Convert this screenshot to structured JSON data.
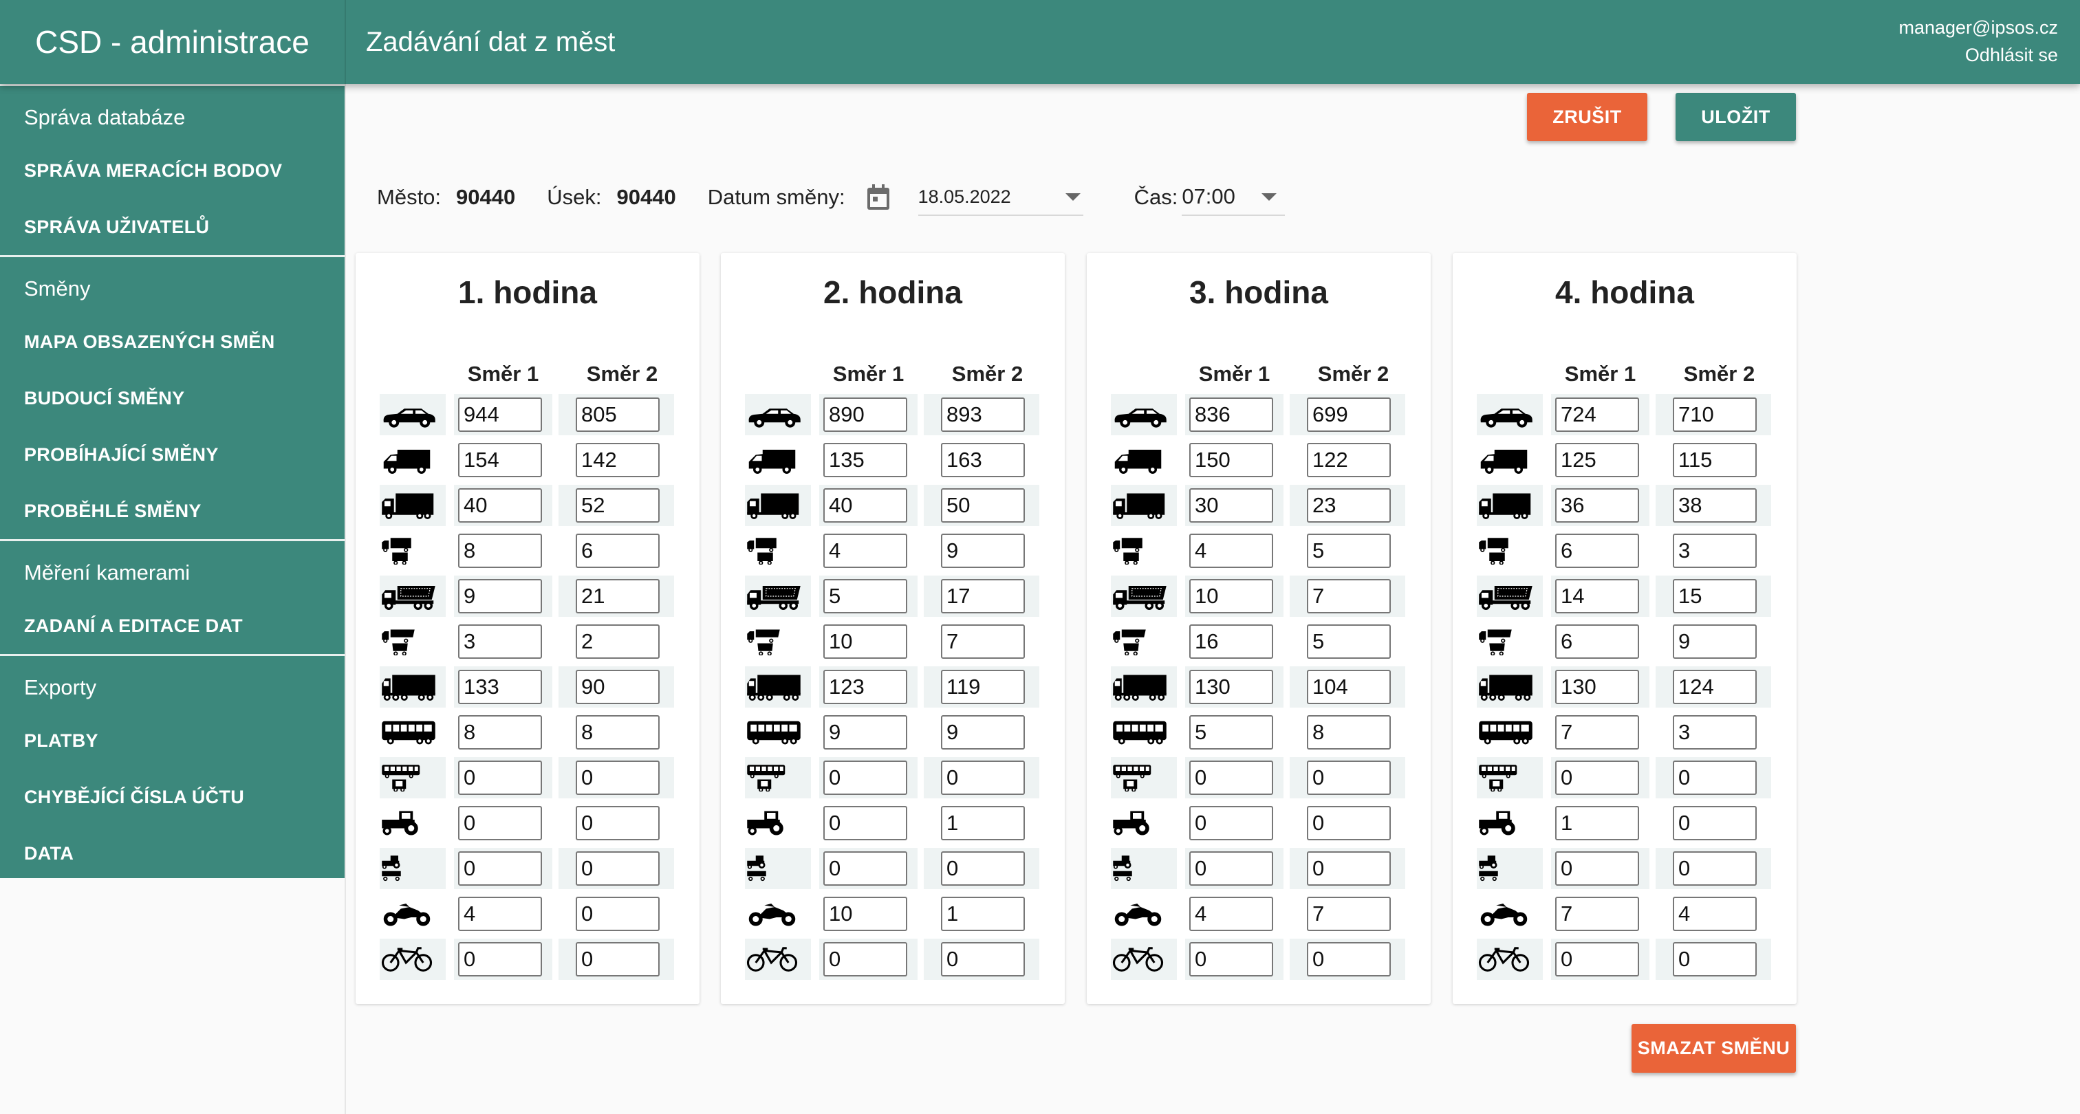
{
  "header": {
    "app_title": "CSD - administrace",
    "page_title": "Zadávání dat z měst",
    "user_email": "manager@ipsos.cz",
    "logout_label": "Odhlásit se"
  },
  "sidebar": {
    "sections": [
      {
        "title": "Správa databáze",
        "items": [
          "SPRÁVA MERACÍCH BODOV",
          "SPRÁVA UŽIVATELŮ"
        ]
      },
      {
        "title": "Směny",
        "items": [
          "MAPA OBSAZENÝCH SMĚN",
          "BUDOUCÍ SMĚNY",
          "PROBÍHAJÍCÍ SMĚNY",
          "PROBĚHLÉ SMĚNY"
        ]
      },
      {
        "title": "Měření kamerami",
        "items": [
          "ZADANÍ A EDITACE DAT"
        ]
      },
      {
        "title": "Exporty",
        "items": [
          "PLATBY",
          "CHYBĚJÍCÍ ČÍSLA ÚČTU",
          "DATA"
        ]
      }
    ]
  },
  "toolbar": {
    "cancel_label": "ZRUŠIT",
    "save_label": "ULOŽIT",
    "delete_shift_label": "SMAZAT SMĚNU"
  },
  "filters": {
    "city_label": "Město:",
    "city_value": "90440",
    "section_label": "Úsek:",
    "section_value": "90440",
    "date_label": "Datum směny:",
    "date_value": "18.05.2022",
    "date_icon": "calendar-icon",
    "time_label": "Čas:",
    "time_value": "07:00"
  },
  "colors": {
    "primary": "#3c887c",
    "accent": "#ea6439",
    "row_shade": "#eef3f3"
  },
  "column_headers": [
    "Směr 1",
    "Směr 2"
  ],
  "vehicle_icons": [
    "car",
    "van",
    "truck",
    "truck-with-trailer",
    "dump-truck",
    "dump-truck-with-trailer",
    "semi-trailer-truck",
    "bus",
    "bus-with-trailer",
    "tractor",
    "tractor-with-trailer",
    "motorcycle",
    "bicycle"
  ],
  "hours": [
    {
      "title": "1. hodina",
      "s1": [
        "944",
        "154",
        "40",
        "8",
        "9",
        "3",
        "133",
        "8",
        "0",
        "0",
        "0",
        "4",
        "0"
      ],
      "s2": [
        "805",
        "142",
        "52",
        "6",
        "21",
        "2",
        "90",
        "8",
        "0",
        "0",
        "0",
        "0",
        "0"
      ]
    },
    {
      "title": "2. hodina",
      "s1": [
        "890",
        "135",
        "40",
        "4",
        "5",
        "10",
        "123",
        "9",
        "0",
        "0",
        "0",
        "10",
        "0"
      ],
      "s2": [
        "893",
        "163",
        "50",
        "9",
        "17",
        "7",
        "119",
        "9",
        "0",
        "1",
        "0",
        "1",
        "0"
      ]
    },
    {
      "title": "3. hodina",
      "s1": [
        "836",
        "150",
        "30",
        "4",
        "10",
        "16",
        "130",
        "5",
        "0",
        "0",
        "0",
        "4",
        "0"
      ],
      "s2": [
        "699",
        "122",
        "23",
        "5",
        "7",
        "5",
        "104",
        "8",
        "0",
        "0",
        "0",
        "7",
        "0"
      ]
    },
    {
      "title": "4. hodina",
      "s1": [
        "724",
        "125",
        "36",
        "6",
        "14",
        "6",
        "130",
        "7",
        "0",
        "1",
        "0",
        "7",
        "0"
      ],
      "s2": [
        "710",
        "115",
        "38",
        "3",
        "15",
        "9",
        "124",
        "3",
        "0",
        "0",
        "0",
        "4",
        "0"
      ]
    }
  ]
}
